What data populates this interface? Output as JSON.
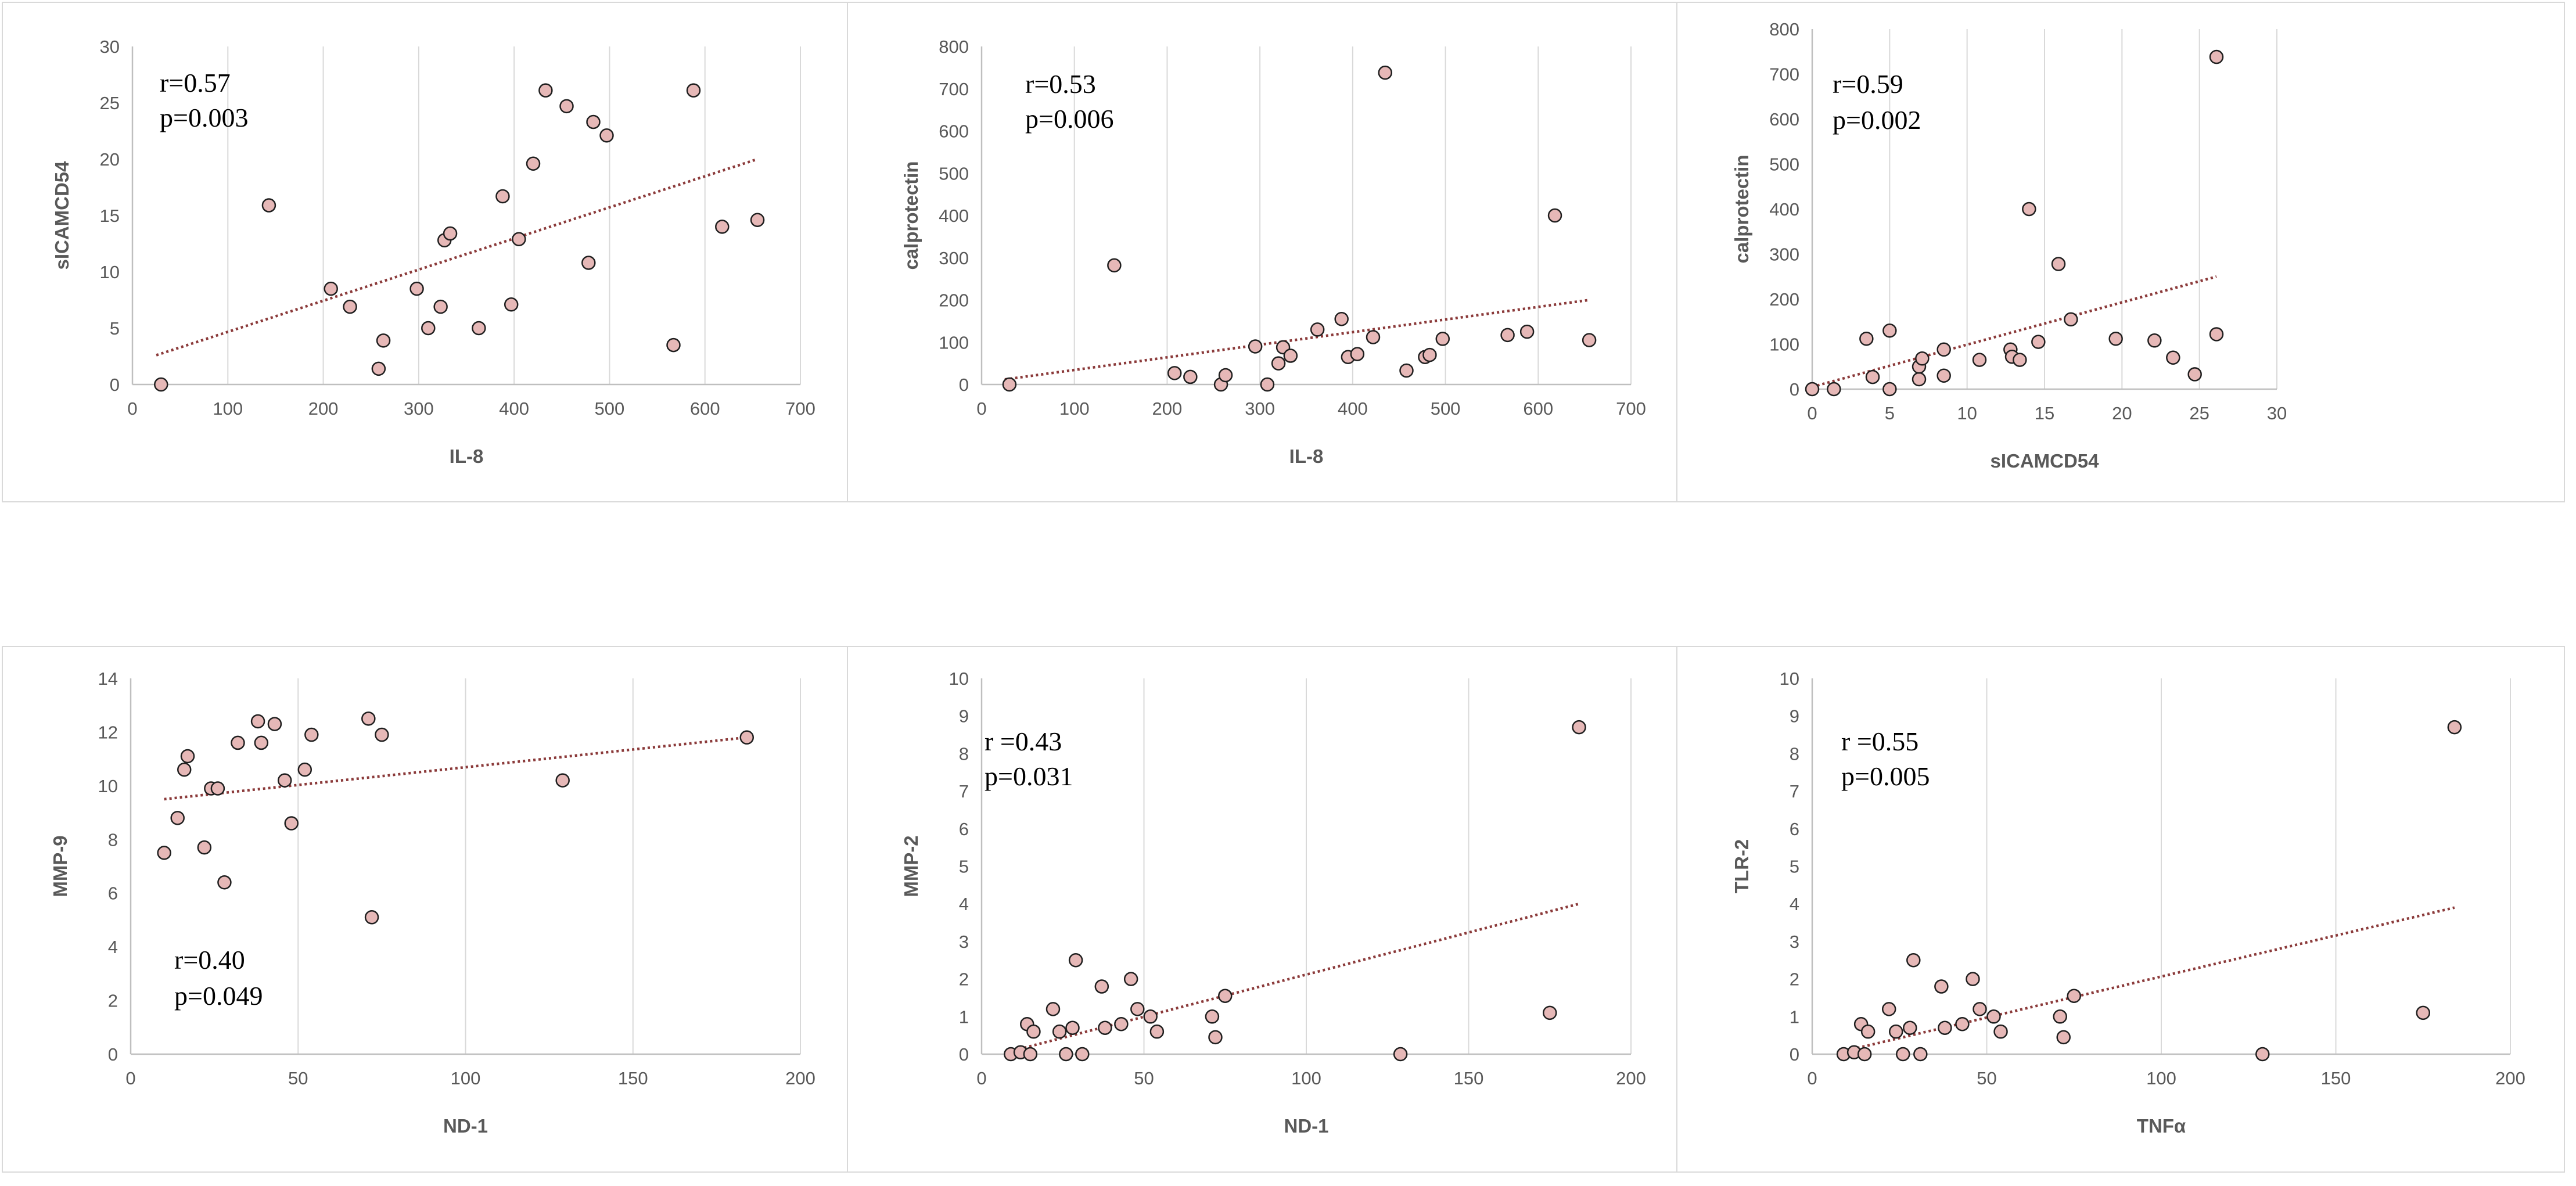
{
  "figure": {
    "colors": {
      "marker_fill": "#e6b8b7",
      "marker_stroke": "#1f1f1f",
      "trendline": "#8b3a3a",
      "axis": "#bfbfbf",
      "grid": "#d9d9d9",
      "text": "#595959",
      "panel_border": "#d9d9d9"
    }
  },
  "chart_data": [
    {
      "type": "scatter",
      "xlabel": "IL-8",
      "ylabel": "sICAMCD54",
      "xlim": [
        0,
        700
      ],
      "ylim": [
        0,
        30
      ],
      "xticks": [
        0,
        100,
        200,
        300,
        400,
        500,
        600,
        700
      ],
      "yticks": [
        0,
        5,
        10,
        15,
        20,
        25,
        30
      ],
      "x_tick_labels": [
        "0",
        "100",
        "200",
        "300",
        "400",
        "500",
        "600",
        "700"
      ],
      "y_tick_labels": [
        "0",
        "5",
        "10",
        "15",
        "20",
        "25",
        "30"
      ],
      "stats": [
        "r=0.57",
        "p=0.003"
      ],
      "trend": {
        "x": [
          25,
          655
        ],
        "y": [
          2.6,
          20.0
        ]
      },
      "x": [
        30,
        143,
        208,
        228,
        258,
        263,
        298,
        310,
        323,
        327,
        333,
        363,
        388,
        397,
        405,
        420,
        433,
        455,
        478,
        483,
        497,
        567,
        588,
        618,
        655
      ],
      "y": [
        0,
        15.9,
        8.5,
        6.9,
        1.4,
        3.9,
        8.5,
        5.0,
        6.9,
        12.8,
        13.4,
        5.0,
        16.7,
        7.1,
        12.9,
        19.6,
        26.1,
        24.7,
        10.8,
        23.3,
        22.1,
        3.5,
        26.1,
        14.0,
        14.6
      ]
    },
    {
      "type": "scatter",
      "xlabel": "IL-8",
      "ylabel": "calprotectin",
      "xlim": [
        0,
        700
      ],
      "ylim": [
        0,
        800
      ],
      "xticks": [
        0,
        100,
        200,
        300,
        400,
        500,
        600,
        700
      ],
      "yticks": [
        0,
        100,
        200,
        300,
        400,
        500,
        600,
        700,
        800
      ],
      "x_tick_labels": [
        "0",
        "100",
        "200",
        "300",
        "400",
        "500",
        "600",
        "700"
      ],
      "y_tick_labels": [
        "0",
        "100",
        "200",
        "300",
        "400",
        "500",
        "600",
        "700",
        "800"
      ],
      "stats": [
        "r=0.53",
        "p=0.006"
      ],
      "trend": {
        "x": [
          25,
          655
        ],
        "y": [
          12,
          200
        ]
      },
      "x": [
        30,
        143,
        208,
        225,
        258,
        263,
        295,
        308,
        320,
        325,
        333,
        362,
        388,
        395,
        405,
        422,
        435,
        458,
        478,
        483,
        497,
        567,
        588,
        618,
        655
      ],
      "y": [
        0,
        282,
        27,
        18,
        0,
        22,
        90,
        0,
        50,
        88,
        68,
        130,
        155,
        65,
        72,
        112,
        738,
        33,
        65,
        70,
        108,
        117,
        125,
        400,
        105
      ]
    },
    {
      "type": "scatter",
      "xlabel": "sICAMCD54",
      "ylabel": "calprotectin",
      "xlim": [
        0,
        30
      ],
      "ylim": [
        0,
        800
      ],
      "xticks": [
        0,
        5,
        10,
        15,
        20,
        25,
        30
      ],
      "yticks": [
        0,
        100,
        200,
        300,
        400,
        500,
        600,
        700,
        800
      ],
      "x_tick_labels": [
        "0",
        "5",
        "10",
        "15",
        "20",
        "25",
        "30"
      ],
      "y_tick_labels": [
        "0",
        "100",
        "200",
        "300",
        "400",
        "500",
        "600",
        "700",
        "800"
      ],
      "stats": [
        "r=0.59",
        "p=0.002"
      ],
      "trend": {
        "x": [
          0,
          26.1
        ],
        "y": [
          5,
          250
        ]
      },
      "x": [
        0,
        1.4,
        3.5,
        3.9,
        5.0,
        5.0,
        6.9,
        6.9,
        7.1,
        8.5,
        8.5,
        10.8,
        12.8,
        12.9,
        13.4,
        14.0,
        14.6,
        15.9,
        16.7,
        19.6,
        22.1,
        23.3,
        24.7,
        26.1,
        26.1
      ],
      "y": [
        0,
        0,
        112,
        27,
        130,
        0,
        22,
        50,
        68,
        88,
        30,
        65,
        88,
        72,
        65,
        400,
        105,
        278,
        155,
        112,
        108,
        70,
        33,
        738,
        122
      ]
    },
    {
      "type": "scatter",
      "xlabel": "ND-1",
      "ylabel": "MMP-9",
      "xlim": [
        0,
        200
      ],
      "ylim": [
        0,
        14
      ],
      "xticks": [
        0,
        50,
        100,
        150,
        200
      ],
      "yticks": [
        0,
        2,
        4,
        6,
        8,
        10,
        12,
        14
      ],
      "x_tick_labels": [
        "0",
        "50",
        "100",
        "150",
        "200"
      ],
      "y_tick_labels": [
        "0",
        "2",
        "4",
        "6",
        "8",
        "10",
        "12",
        "14"
      ],
      "stats": [
        "r=0.40",
        "p=0.049"
      ],
      "trend": {
        "x": [
          10,
          184
        ],
        "y": [
          9.5,
          11.8
        ]
      },
      "x": [
        10,
        14,
        16,
        17,
        22,
        24,
        26,
        28,
        32,
        38,
        39,
        43,
        46,
        48,
        52,
        54,
        71,
        72,
        75,
        129,
        184
      ],
      "y": [
        7.5,
        8.8,
        10.6,
        11.1,
        7.7,
        9.9,
        9.9,
        6.4,
        11.6,
        12.4,
        11.6,
        12.3,
        10.2,
        8.6,
        10.6,
        11.9,
        12.5,
        5.1,
        11.9,
        10.2,
        11.8
      ]
    },
    {
      "type": "scatter",
      "xlabel": "ND-1",
      "ylabel": "MMP-2",
      "xlim": [
        0,
        200
      ],
      "ylim": [
        0,
        10
      ],
      "xticks": [
        0,
        50,
        100,
        150,
        200
      ],
      "yticks": [
        0,
        1,
        2,
        3,
        4,
        5,
        6,
        7,
        8,
        9,
        10
      ],
      "x_tick_labels": [
        "0",
        "50",
        "100",
        "150",
        "200"
      ],
      "y_tick_labels": [
        "0",
        "1",
        "2",
        "3",
        "4",
        "5",
        "6",
        "7",
        "8",
        "9",
        "10"
      ],
      "stats": [
        "r =0.43",
        "p=0.031"
      ],
      "trend": {
        "x": [
          10,
          184
        ],
        "y": [
          0.1,
          4.0
        ]
      },
      "x": [
        9,
        12,
        14,
        15,
        16,
        22,
        24,
        26,
        28,
        29,
        31,
        37,
        38,
        43,
        46,
        48,
        52,
        54,
        71,
        72,
        75,
        129,
        175,
        184
      ],
      "y": [
        0,
        0.05,
        0.8,
        0,
        0.6,
        1.2,
        0.6,
        0,
        0.7,
        2.5,
        0,
        1.8,
        0.7,
        0.8,
        2.0,
        1.2,
        1.0,
        0.6,
        1.0,
        0.45,
        1.55,
        0,
        1.1,
        8.7
      ]
    },
    {
      "type": "scatter",
      "xlabel": "TNFα",
      "ylabel": "TLR-2",
      "xlim": [
        0,
        200
      ],
      "ylim": [
        0,
        10
      ],
      "xticks": [
        0,
        50,
        100,
        150,
        200
      ],
      "yticks": [
        0,
        1,
        2,
        3,
        4,
        5,
        6,
        7,
        8,
        9,
        10
      ],
      "x_tick_labels": [
        "0",
        "50",
        "100",
        "150",
        "200"
      ],
      "y_tick_labels": [
        "0",
        "1",
        "2",
        "3",
        "4",
        "5",
        "6",
        "7",
        "8",
        "9",
        "10"
      ],
      "stats": [
        "r =0.55",
        "p=0.005"
      ],
      "trend": {
        "x": [
          10,
          184
        ],
        "y": [
          0.1,
          3.9
        ]
      },
      "x": [
        9,
        12,
        14,
        15,
        16,
        22,
        24,
        26,
        28,
        29,
        31,
        37,
        38,
        43,
        46,
        48,
        52,
        54,
        71,
        72,
        75,
        129,
        175,
        184
      ],
      "y": [
        0,
        0.05,
        0.8,
        0,
        0.6,
        1.2,
        0.6,
        0,
        0.7,
        2.5,
        0,
        1.8,
        0.7,
        0.8,
        2.0,
        1.2,
        1.0,
        0.6,
        1.0,
        0.45,
        1.55,
        0,
        1.1,
        8.7
      ]
    }
  ]
}
